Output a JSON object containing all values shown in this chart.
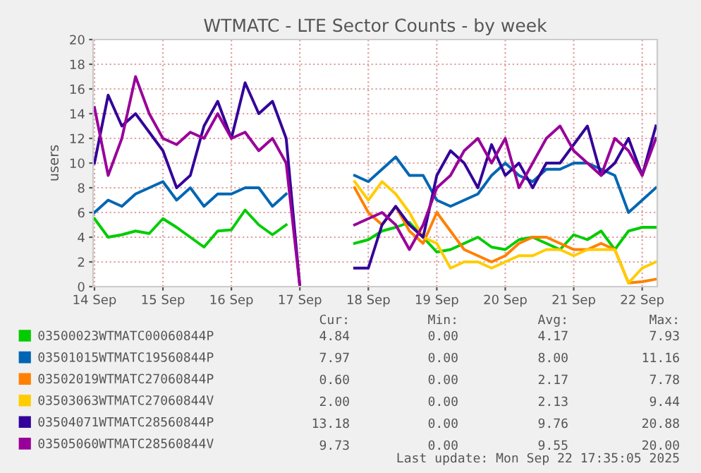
{
  "chart_data": {
    "type": "line",
    "title": "WTMATC - LTE Sector Counts - by week",
    "ylabel": "users",
    "x": [
      "2025-09-14T00:00",
      "2025-09-14T04:48",
      "2025-09-14T09:36",
      "2025-09-14T14:24",
      "2025-09-14T19:12",
      "2025-09-15T00:00",
      "2025-09-15T04:48",
      "2025-09-15T09:36",
      "2025-09-15T14:24",
      "2025-09-15T19:12",
      "2025-09-16T00:00",
      "2025-09-16T04:48",
      "2025-09-16T09:36",
      "2025-09-16T14:24",
      "2025-09-16T19:12",
      "2025-09-17T00:00",
      "2025-09-17T04:48",
      "2025-09-17T09:36",
      "2025-09-17T14:24",
      "2025-09-17T19:12",
      "2025-09-18T00:00",
      "2025-09-18T04:48",
      "2025-09-18T09:36",
      "2025-09-18T14:24",
      "2025-09-18T19:12",
      "2025-09-19T00:00",
      "2025-09-19T04:48",
      "2025-09-19T09:36",
      "2025-09-19T14:24",
      "2025-09-19T19:12",
      "2025-09-20T00:00",
      "2025-09-20T04:48",
      "2025-09-20T09:36",
      "2025-09-20T14:24",
      "2025-09-20T19:12",
      "2025-09-21T00:00",
      "2025-09-21T04:48",
      "2025-09-21T09:36",
      "2025-09-21T14:24",
      "2025-09-21T19:12",
      "2025-09-22T00:00",
      "2025-09-22T04:48"
    ],
    "xlim": [
      "2025-09-13T23:31",
      "2025-09-22T05:17"
    ],
    "xticks": [
      {
        "value": "2025-09-14",
        "label": "14 Sep"
      },
      {
        "value": "2025-09-15",
        "label": "15 Sep"
      },
      {
        "value": "2025-09-16",
        "label": "16 Sep"
      },
      {
        "value": "2025-09-17",
        "label": "17 Sep"
      },
      {
        "value": "2025-09-18",
        "label": "18 Sep"
      },
      {
        "value": "2025-09-19",
        "label": "19 Sep"
      },
      {
        "value": "2025-09-20",
        "label": "20 Sep"
      },
      {
        "value": "2025-09-21",
        "label": "21 Sep"
      },
      {
        "value": "2025-09-22",
        "label": "22 Sep"
      }
    ],
    "ylim": [
      0,
      20
    ],
    "yticks": [
      0,
      2,
      4,
      6,
      8,
      10,
      12,
      14,
      16,
      18,
      20
    ],
    "grid": true,
    "legend": "bottom",
    "marker": "none",
    "line_style": "solid",
    "series": [
      {
        "name": "03500023WTMATC00060844P",
        "color": "#00cc00",
        "values": [
          5.5,
          4.0,
          4.2,
          4.5,
          4.3,
          5.5,
          4.8,
          4.0,
          3.2,
          4.5,
          4.6,
          6.2,
          5.0,
          4.2,
          5.0,
          null,
          null,
          null,
          null,
          3.5,
          3.8,
          4.5,
          4.8,
          5.2,
          4.0,
          2.8,
          3.0,
          3.5,
          4.0,
          3.2,
          3.0,
          3.8,
          4.0,
          3.5,
          3.0,
          4.2,
          3.8,
          4.5,
          3.0,
          4.5,
          4.8,
          4.8
        ]
      },
      {
        "name": "03501015WTMATC19560844P",
        "color": "#0066b3",
        "values": [
          6.0,
          7.0,
          6.5,
          7.5,
          8.0,
          8.5,
          7.0,
          8.0,
          6.5,
          7.5,
          7.5,
          8.0,
          8.0,
          6.5,
          7.5,
          null,
          null,
          null,
          null,
          9.0,
          8.5,
          9.5,
          10.5,
          9.0,
          9.0,
          7.0,
          6.5,
          7.0,
          7.5,
          9.0,
          10.0,
          9.0,
          8.5,
          9.5,
          9.5,
          10.0,
          10.0,
          9.5,
          9.0,
          6.0,
          7.0,
          8.0
        ]
      },
      {
        "name": "03502019WTMATC27060844P",
        "color": "#ff8000",
        "values": [
          null,
          null,
          null,
          null,
          null,
          null,
          null,
          null,
          null,
          null,
          null,
          null,
          null,
          null,
          null,
          null,
          null,
          null,
          null,
          8.0,
          6.0,
          5.0,
          6.5,
          4.5,
          3.5,
          6.0,
          4.5,
          3.0,
          2.5,
          2.0,
          2.5,
          3.5,
          4.0,
          4.0,
          3.5,
          3.0,
          3.0,
          3.5,
          3.0,
          0.3,
          0.4,
          0.6
        ]
      },
      {
        "name": "03503063WTMATC27060844V",
        "color": "#ffcc00",
        "values": [
          null,
          null,
          null,
          null,
          null,
          null,
          null,
          null,
          null,
          null,
          null,
          null,
          null,
          null,
          null,
          null,
          null,
          null,
          null,
          8.5,
          7.0,
          8.5,
          7.5,
          6.0,
          4.0,
          3.5,
          1.5,
          2.0,
          2.0,
          1.5,
          2.0,
          2.5,
          2.5,
          3.0,
          3.0,
          2.5,
          3.0,
          3.0,
          3.0,
          0.3,
          1.5,
          2.0
        ]
      },
      {
        "name": "03504071WTMATC28560844P",
        "color": "#330099",
        "values": [
          10.0,
          15.5,
          13.0,
          14.0,
          12.5,
          11.0,
          8.0,
          9.0,
          13.0,
          15.0,
          12.0,
          16.5,
          14.0,
          15.0,
          12.0,
          0,
          null,
          null,
          null,
          1.5,
          1.5,
          5.0,
          6.5,
          5.0,
          4.0,
          9.0,
          11.0,
          10.0,
          8.0,
          11.5,
          9.0,
          10.0,
          8.0,
          10.0,
          10.0,
          11.5,
          13.0,
          9.0,
          10.0,
          12.0,
          9.0,
          13.0
        ]
      },
      {
        "name": "03505060WTMATC28560844V",
        "color": "#990099",
        "values": [
          14.5,
          9.0,
          12.0,
          17.0,
          14.0,
          12.0,
          11.5,
          12.5,
          12.0,
          14.0,
          12.0,
          12.5,
          11.0,
          12.0,
          10.0,
          0,
          null,
          null,
          null,
          5.0,
          5.5,
          6.0,
          5.0,
          3.0,
          5.0,
          8.0,
          9.0,
          11.0,
          12.0,
          10.0,
          12.0,
          8.0,
          10.0,
          12.0,
          13.0,
          11.0,
          10.0,
          9.0,
          12.0,
          11.0,
          9.0,
          12.0
        ]
      }
    ],
    "annotations": [
      "Cur:",
      "Min:",
      "Avg:",
      "Max:",
      "4.84",
      "0.00",
      "4.17",
      "7.93",
      "7.97",
      "0.00",
      "8.00",
      "11.16",
      "0.60",
      "0.00",
      "2.17",
      "7.78",
      "2.00",
      "0.00",
      "2.13",
      "9.44",
      "13.18",
      "0.00",
      "9.76",
      "20.88",
      "9.73",
      "0.00",
      "9.55",
      "20.00",
      "Last update: Mon Sep 22 17:35:05 2025"
    ]
  }
}
